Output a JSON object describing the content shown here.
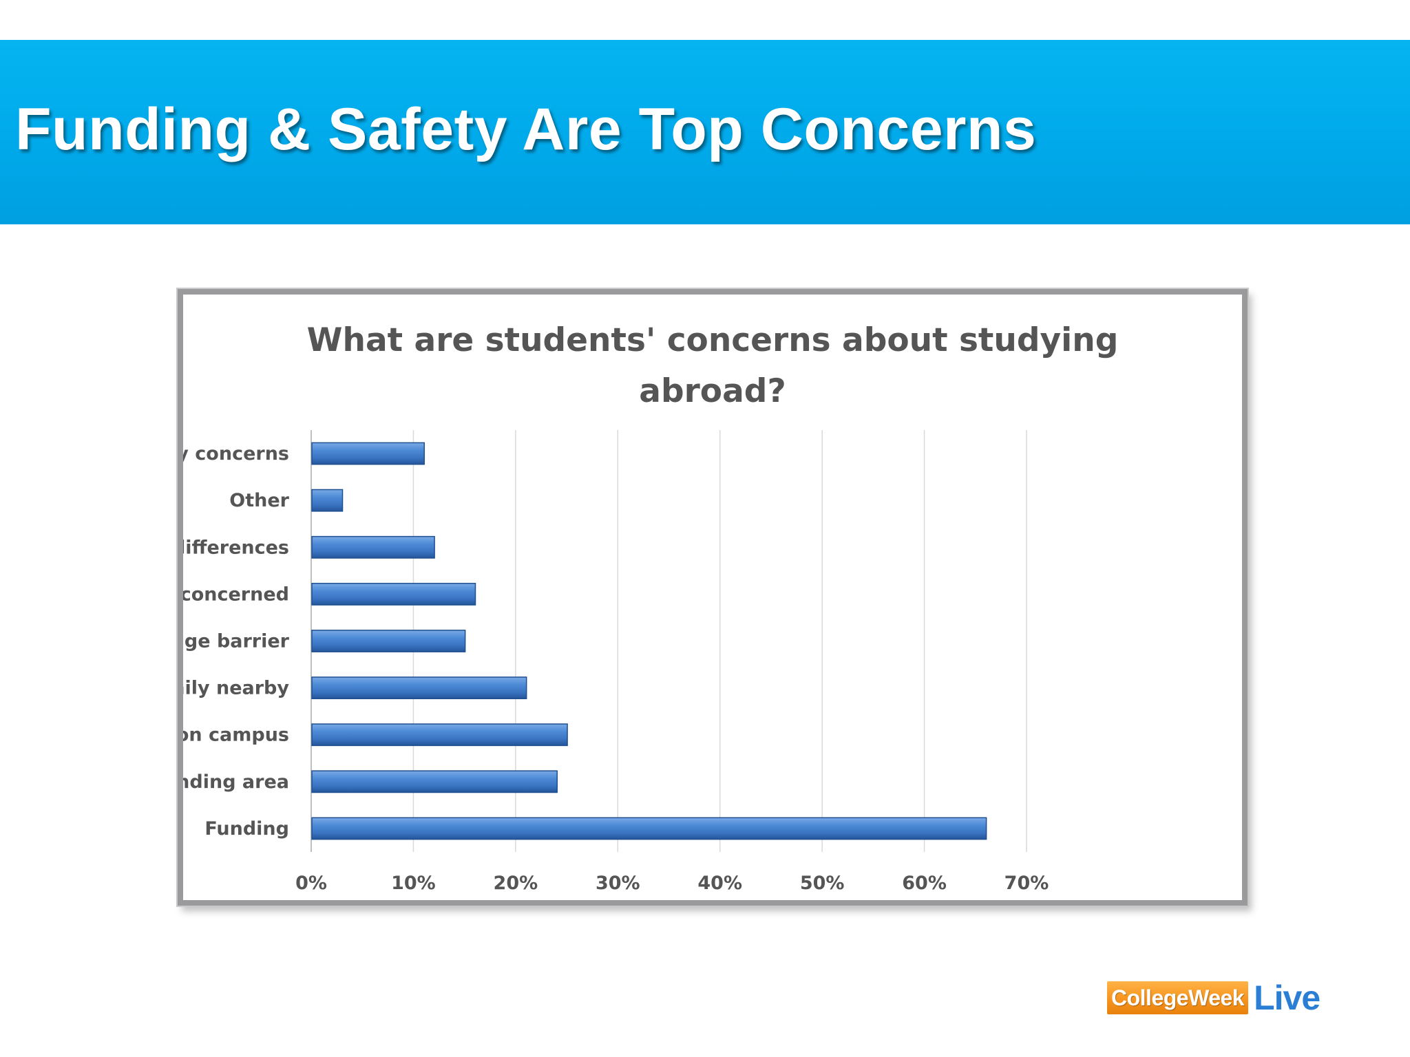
{
  "slide": {
    "title": "Funding & Safety Are Top Concerns"
  },
  "colors": {
    "banner": "#00a9ea",
    "bar": "#3f7ccc",
    "bar_dark": "#1f4f8f",
    "text": "#555555",
    "grid": "#d9d9d9",
    "logo_orange": "#f7941d",
    "logo_blue": "#2a7fd4"
  },
  "chart_data": {
    "type": "bar",
    "orientation": "horizontal",
    "title_lines": [
      "What are students' concerns about studying",
      "abroad?"
    ],
    "categories": [
      "I don't have any concerns",
      "Other",
      "Cultural differences",
      "My parents are concerned",
      "Language barrier",
      "No friends or family nearby",
      "Safety on campus",
      "Safety in surrounding area",
      "Funding"
    ],
    "values": [
      11,
      3,
      12,
      16,
      15,
      21,
      25,
      24,
      66
    ],
    "unit": "%",
    "xlim": [
      0,
      70
    ],
    "ticks": [
      0,
      10,
      20,
      30,
      40,
      50,
      60,
      70
    ],
    "tick_labels": [
      "0%",
      "10%",
      "20%",
      "30%",
      "40%",
      "50%",
      "60%",
      "70%"
    ],
    "grid": "vertical",
    "legend": "none"
  },
  "logo": {
    "part1": "CollegeWeek",
    "part2": "Live"
  }
}
